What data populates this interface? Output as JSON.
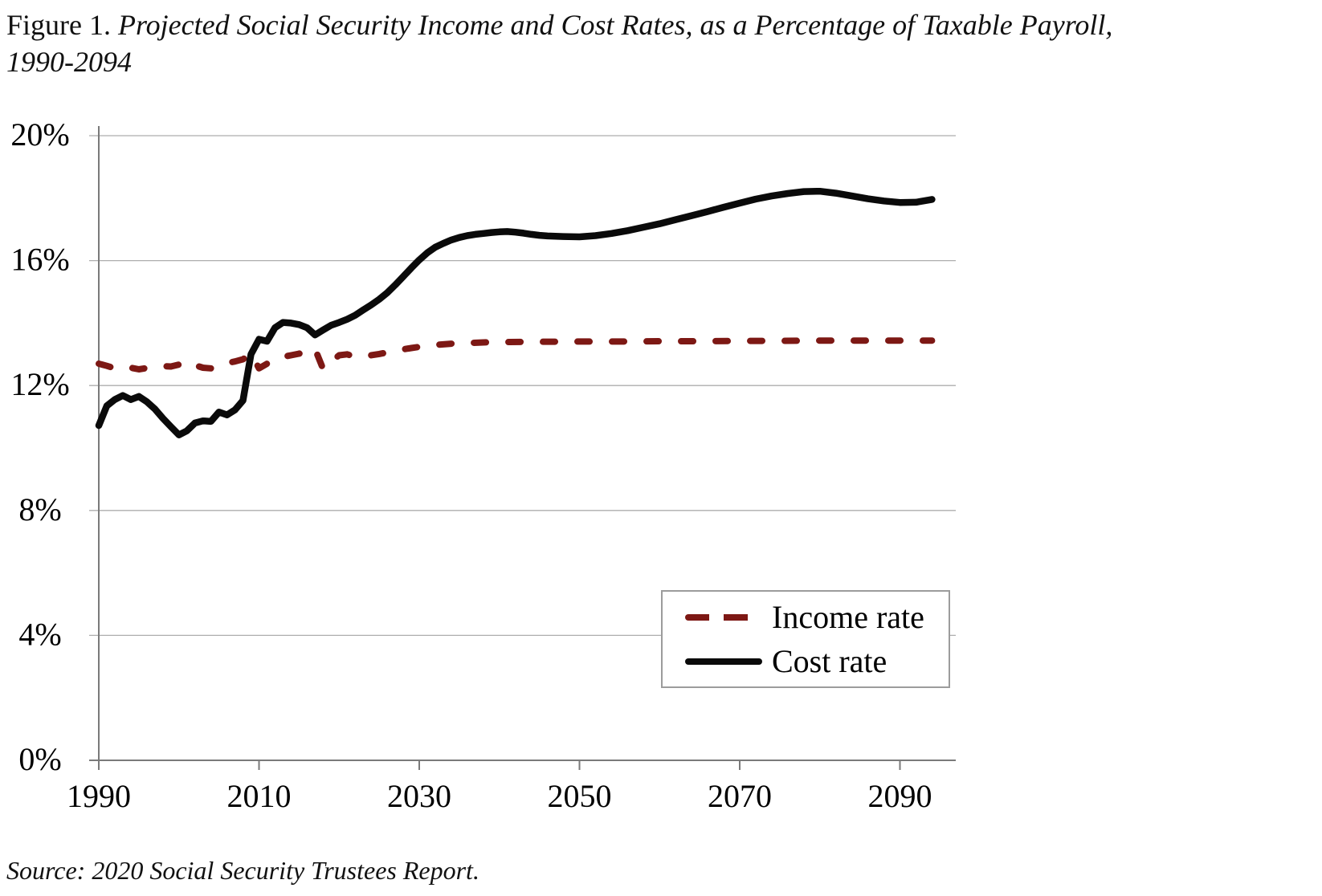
{
  "title": {
    "prefix": "Figure 1. ",
    "italic_line1": "Projected Social Security Income and Cost Rates, as a Percentage of Taxable Payroll,",
    "italic_line2": "1990-2094"
  },
  "source": "Source: 2020 Social Security Trustees Report.",
  "legend": {
    "items": [
      {
        "label": "Income rate",
        "style": "dashed",
        "color": "#7d1814"
      },
      {
        "label": "Cost rate",
        "style": "solid",
        "color": "#0a0a0a"
      }
    ]
  },
  "colors": {
    "income": "#7d1814",
    "cost": "#0a0a0a",
    "gridline": "#adadad",
    "axis": "#7a7a7a"
  },
  "chart_data": {
    "type": "line",
    "title": "Projected Social Security Income and Cost Rates, as a Percentage of Taxable Payroll, 1990-2094",
    "xlabel": "",
    "ylabel": "",
    "xlim": [
      1990,
      2097
    ],
    "ylim": [
      0,
      20
    ],
    "grid": "horizontal",
    "legend_position": "lower-right-box",
    "x_ticks": [
      1990,
      2010,
      2030,
      2050,
      2070,
      2090
    ],
    "y_tick_values": [
      0,
      4,
      8,
      12,
      16,
      20
    ],
    "y_tick_labels": [
      "0%",
      "4%",
      "8%",
      "12%",
      "16%",
      "20%"
    ],
    "series": [
      {
        "name": "Income rate",
        "color": "#7d1814",
        "style": "dashed",
        "points": [
          [
            1990,
            12.7
          ],
          [
            1991,
            12.63
          ],
          [
            1992,
            12.55
          ],
          [
            1993,
            12.52
          ],
          [
            1994,
            12.57
          ],
          [
            1995,
            12.52
          ],
          [
            1996,
            12.56
          ],
          [
            1997,
            12.6
          ],
          [
            1998,
            12.62
          ],
          [
            1999,
            12.61
          ],
          [
            2000,
            12.67
          ],
          [
            2001,
            12.78
          ],
          [
            2002,
            12.65
          ],
          [
            2003,
            12.57
          ],
          [
            2004,
            12.55
          ],
          [
            2005,
            12.67
          ],
          [
            2006,
            12.72
          ],
          [
            2007,
            12.77
          ],
          [
            2008,
            12.84
          ],
          [
            2009,
            13.02
          ],
          [
            2010,
            12.55
          ],
          [
            2011,
            12.7
          ],
          [
            2012,
            12.85
          ],
          [
            2013,
            12.92
          ],
          [
            2014,
            12.97
          ],
          [
            2015,
            13.02
          ],
          [
            2016,
            13.1
          ],
          [
            2017,
            13.17
          ],
          [
            2018,
            12.53
          ],
          [
            2019,
            12.77
          ],
          [
            2020,
            12.97
          ],
          [
            2021,
            13.0
          ],
          [
            2022,
            12.92
          ],
          [
            2023,
            12.94
          ],
          [
            2024,
            12.97
          ],
          [
            2025,
            13.01
          ],
          [
            2026,
            13.06
          ],
          [
            2027,
            13.11
          ],
          [
            2028,
            13.16
          ],
          [
            2029,
            13.2
          ],
          [
            2030,
            13.24
          ],
          [
            2032,
            13.3
          ],
          [
            2034,
            13.34
          ],
          [
            2036,
            13.36
          ],
          [
            2038,
            13.38
          ],
          [
            2040,
            13.39
          ],
          [
            2045,
            13.4
          ],
          [
            2050,
            13.41
          ],
          [
            2055,
            13.41
          ],
          [
            2060,
            13.42
          ],
          [
            2065,
            13.42
          ],
          [
            2070,
            13.43
          ],
          [
            2075,
            13.43
          ],
          [
            2080,
            13.44
          ],
          [
            2085,
            13.44
          ],
          [
            2090,
            13.44
          ],
          [
            2094,
            13.44
          ]
        ]
      },
      {
        "name": "Cost rate",
        "color": "#0a0a0a",
        "style": "solid",
        "points": [
          [
            1990,
            10.72
          ],
          [
            1991,
            11.35
          ],
          [
            1992,
            11.55
          ],
          [
            1993,
            11.68
          ],
          [
            1994,
            11.55
          ],
          [
            1995,
            11.65
          ],
          [
            1996,
            11.48
          ],
          [
            1997,
            11.25
          ],
          [
            1998,
            10.95
          ],
          [
            1999,
            10.68
          ],
          [
            2000,
            10.42
          ],
          [
            2001,
            10.55
          ],
          [
            2002,
            10.8
          ],
          [
            2003,
            10.87
          ],
          [
            2004,
            10.85
          ],
          [
            2005,
            11.15
          ],
          [
            2006,
            11.06
          ],
          [
            2007,
            11.22
          ],
          [
            2008,
            11.52
          ],
          [
            2009,
            13.0
          ],
          [
            2010,
            13.48
          ],
          [
            2011,
            13.42
          ],
          [
            2012,
            13.85
          ],
          [
            2013,
            14.02
          ],
          [
            2014,
            14.0
          ],
          [
            2015,
            13.95
          ],
          [
            2016,
            13.85
          ],
          [
            2017,
            13.62
          ],
          [
            2018,
            13.78
          ],
          [
            2019,
            13.93
          ],
          [
            2020,
            14.02
          ],
          [
            2021,
            14.12
          ],
          [
            2022,
            14.25
          ],
          [
            2023,
            14.42
          ],
          [
            2024,
            14.58
          ],
          [
            2025,
            14.76
          ],
          [
            2026,
            14.97
          ],
          [
            2027,
            15.22
          ],
          [
            2028,
            15.49
          ],
          [
            2029,
            15.76
          ],
          [
            2030,
            16.02
          ],
          [
            2031,
            16.25
          ],
          [
            2032,
            16.43
          ],
          [
            2033,
            16.55
          ],
          [
            2034,
            16.66
          ],
          [
            2035,
            16.74
          ],
          [
            2036,
            16.8
          ],
          [
            2037,
            16.84
          ],
          [
            2038,
            16.87
          ],
          [
            2039,
            16.9
          ],
          [
            2040,
            16.92
          ],
          [
            2041,
            16.93
          ],
          [
            2042,
            16.91
          ],
          [
            2043,
            16.88
          ],
          [
            2044,
            16.84
          ],
          [
            2045,
            16.81
          ],
          [
            2046,
            16.79
          ],
          [
            2048,
            16.77
          ],
          [
            2050,
            16.76
          ],
          [
            2052,
            16.8
          ],
          [
            2054,
            16.87
          ],
          [
            2056,
            16.96
          ],
          [
            2058,
            17.07
          ],
          [
            2060,
            17.18
          ],
          [
            2062,
            17.31
          ],
          [
            2064,
            17.44
          ],
          [
            2066,
            17.57
          ],
          [
            2068,
            17.71
          ],
          [
            2070,
            17.84
          ],
          [
            2072,
            17.97
          ],
          [
            2074,
            18.07
          ],
          [
            2076,
            18.15
          ],
          [
            2078,
            18.21
          ],
          [
            2080,
            18.22
          ],
          [
            2082,
            18.16
          ],
          [
            2084,
            18.07
          ],
          [
            2086,
            17.98
          ],
          [
            2088,
            17.91
          ],
          [
            2090,
            17.86
          ],
          [
            2092,
            17.87
          ],
          [
            2094,
            17.96
          ]
        ]
      }
    ]
  }
}
